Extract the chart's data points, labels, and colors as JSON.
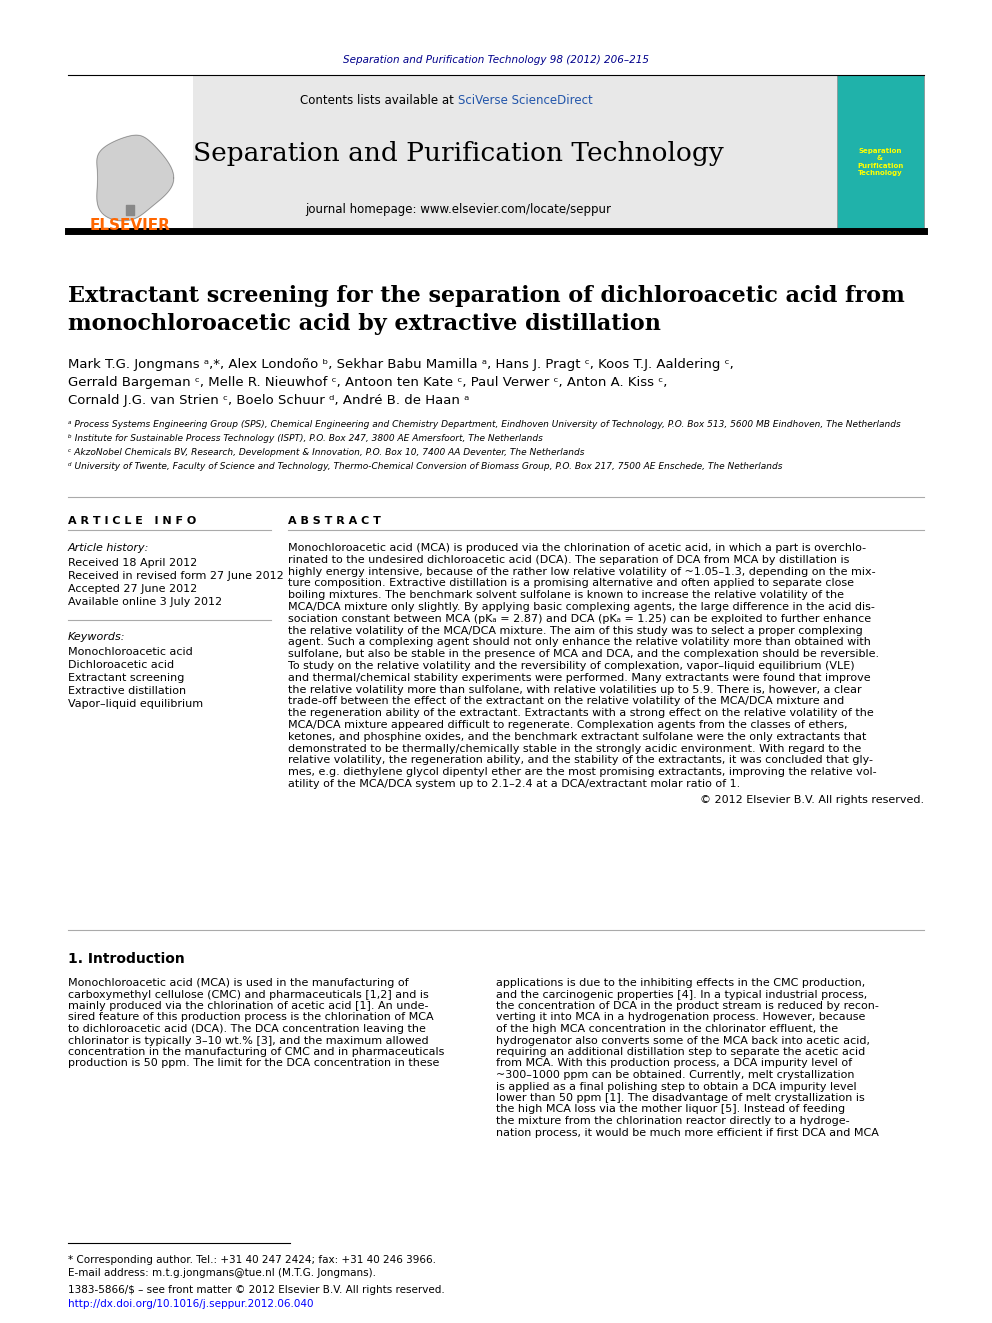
{
  "page_bg": "#ffffff",
  "top_journal_ref": "Separation and Purification Technology 98 (2012) 206–215",
  "top_journal_ref_color": "#00008B",
  "header_bg": "#e8e8e8",
  "header_title": "Separation and Purification Technology",
  "header_subtitle": "journal homepage: www.elsevier.com/locate/seppur",
  "header_contents_text": "Contents lists available at ",
  "header_sciverse": "SciVerse ScienceDirect",
  "elsevier_color": "#FF6600",
  "article_title": "Extractant screening for the separation of dichloroacetic acid from\nmonochloroacetic acid by extractive distillation",
  "authors_line1": "Mark T.G. Jongmans ᵃ,*, Alex Londoño ᵇ, Sekhar Babu Mamilla ᵃ, Hans J. Pragt ᶜ, Koos T.J. Aaldering ᶜ,",
  "authors_line2": "Gerrald Bargeman ᶜ, Melle R. Nieuwhof ᶜ, Antoon ten Kate ᶜ, Paul Verwer ᶜ, Anton A. Kiss ᶜ,",
  "authors_line3": "Cornald J.G. van Strien ᶜ, Boelo Schuur ᵈ, André B. de Haan ᵃ",
  "affil_a": "ᵃ Process Systems Engineering Group (SPS), Chemical Engineering and Chemistry Department, Eindhoven University of Technology, P.O. Box 513, 5600 MB Eindhoven, The Netherlands",
  "affil_b": "ᵇ Institute for Sustainable Process Technology (ISPT), P.O. Box 247, 3800 AE Amersfoort, The Netherlands",
  "affil_c": "ᶜ AkzoNobel Chemicals BV, Research, Development & Innovation, P.O. Box 10, 7400 AA Deventer, The Netherlands",
  "affil_d": "ᵈ University of Twente, Faculty of Science and Technology, Thermo-Chemical Conversion of Biomass Group, P.O. Box 217, 7500 AE Enschede, The Netherlands",
  "article_info_label": "A R T I C L E   I N F O",
  "abstract_label": "A B S T R A C T",
  "article_history_label": "Article history:",
  "received": "Received 18 April 2012",
  "received_revised": "Received in revised form 27 June 2012",
  "accepted": "Accepted 27 June 2012",
  "available": "Available online 3 July 2012",
  "keywords_label": "Keywords:",
  "kw1": "Monochloroacetic acid",
  "kw2": "Dichloroacetic acid",
  "kw3": "Extractant screening",
  "kw4": "Extractive distillation",
  "kw5": "Vapor–liquid equilibrium",
  "abstract_text_lines": [
    "Monochloroacetic acid (MCA) is produced via the chlorination of acetic acid, in which a part is overchlo-",
    "rinated to the undesired dichloroacetic acid (DCA). The separation of DCA from MCA by distillation is",
    "highly energy intensive, because of the rather low relative volatility of ~1.05–1.3, depending on the mix-",
    "ture composition. Extractive distillation is a promising alternative and often applied to separate close",
    "boiling mixtures. The benchmark solvent sulfolane is known to increase the relative volatility of the",
    "MCA/DCA mixture only slightly. By applying basic complexing agents, the large difference in the acid dis-",
    "sociation constant between MCA (pKₐ = 2.87) and DCA (pKₐ = 1.25) can be exploited to further enhance",
    "the relative volatility of the MCA/DCA mixture. The aim of this study was to select a proper complexing",
    "agent. Such a complexing agent should not only enhance the relative volatility more than obtained with",
    "sulfolane, but also be stable in the presence of MCA and DCA, and the complexation should be reversible.",
    "To study on the relative volatility and the reversibility of complexation, vapor–liquid equilibrium (VLE)",
    "and thermal/chemical stability experiments were performed. Many extractants were found that improve",
    "the relative volatility more than sulfolane, with relative volatilities up to 5.9. There is, however, a clear",
    "trade-off between the effect of the extractant on the relative volatility of the MCA/DCA mixture and",
    "the regeneration ability of the extractant. Extractants with a strong effect on the relative volatility of the",
    "MCA/DCA mixture appeared difficult to regenerate. Complexation agents from the classes of ethers,",
    "ketones, and phosphine oxides, and the benchmark extractant sulfolane were the only extractants that",
    "demonstrated to be thermally/chemically stable in the strongly acidic environment. With regard to the",
    "relative volatility, the regeneration ability, and the stability of the extractants, it was concluded that gly-",
    "mes, e.g. diethylene glycol dipentyl ether are the most promising extractants, improving the relative vol-",
    "atility of the MCA/DCA system up to 2.1–2.4 at a DCA/extractant molar ratio of 1."
  ],
  "copyright": "© 2012 Elsevier B.V. All rights reserved.",
  "intro_section": "1. Introduction",
  "intro_col1_lines": [
    "Monochloroacetic acid (MCA) is used in the manufacturing of",
    "carboxymethyl cellulose (CMC) and pharmaceuticals [1,2] and is",
    "mainly produced via the chlorination of acetic acid [1]. An unde-",
    "sired feature of this production process is the chlorination of MCA",
    "to dichloroacetic acid (DCA). The DCA concentration leaving the",
    "chlorinator is typically 3–10 wt.% [3], and the maximum allowed",
    "concentration in the manufacturing of CMC and in pharmaceuticals",
    "production is 50 ppm. The limit for the DCA concentration in these"
  ],
  "intro_col2_lines": [
    "applications is due to the inhibiting effects in the CMC production,",
    "and the carcinogenic properties [4]. In a typical industrial process,",
    "the concentration of DCA in the product stream is reduced by recon-",
    "verting it into MCA in a hydrogenation process. However, because",
    "of the high MCA concentration in the chlorinator effluent, the",
    "hydrogenator also converts some of the MCA back into acetic acid,",
    "requiring an additional distillation step to separate the acetic acid",
    "from MCA. With this production process, a DCA impurity level of",
    "~300–1000 ppm can be obtained. Currently, melt crystallization",
    "is applied as a final polishing step to obtain a DCA impurity level",
    "lower than 50 ppm [1]. The disadvantage of melt crystallization is",
    "the high MCA loss via the mother liquor [5]. Instead of feeding",
    "the mixture from the chlorination reactor directly to a hydroge-",
    "nation process, it would be much more efficient if first DCA and MCA"
  ],
  "footnote_corresponding": "* Corresponding author. Tel.: +31 40 247 2424; fax: +31 40 246 3966.",
  "footnote_email": "E-mail address: m.t.g.jongmans@tue.nl (M.T.G. Jongmans).",
  "footer_issn": "1383-5866/$ – see front matter © 2012 Elsevier B.V. All rights reserved.",
  "footer_doi": "http://dx.doi.org/10.1016/j.seppur.2012.06.040",
  "footer_doi_color": "#0000FF"
}
